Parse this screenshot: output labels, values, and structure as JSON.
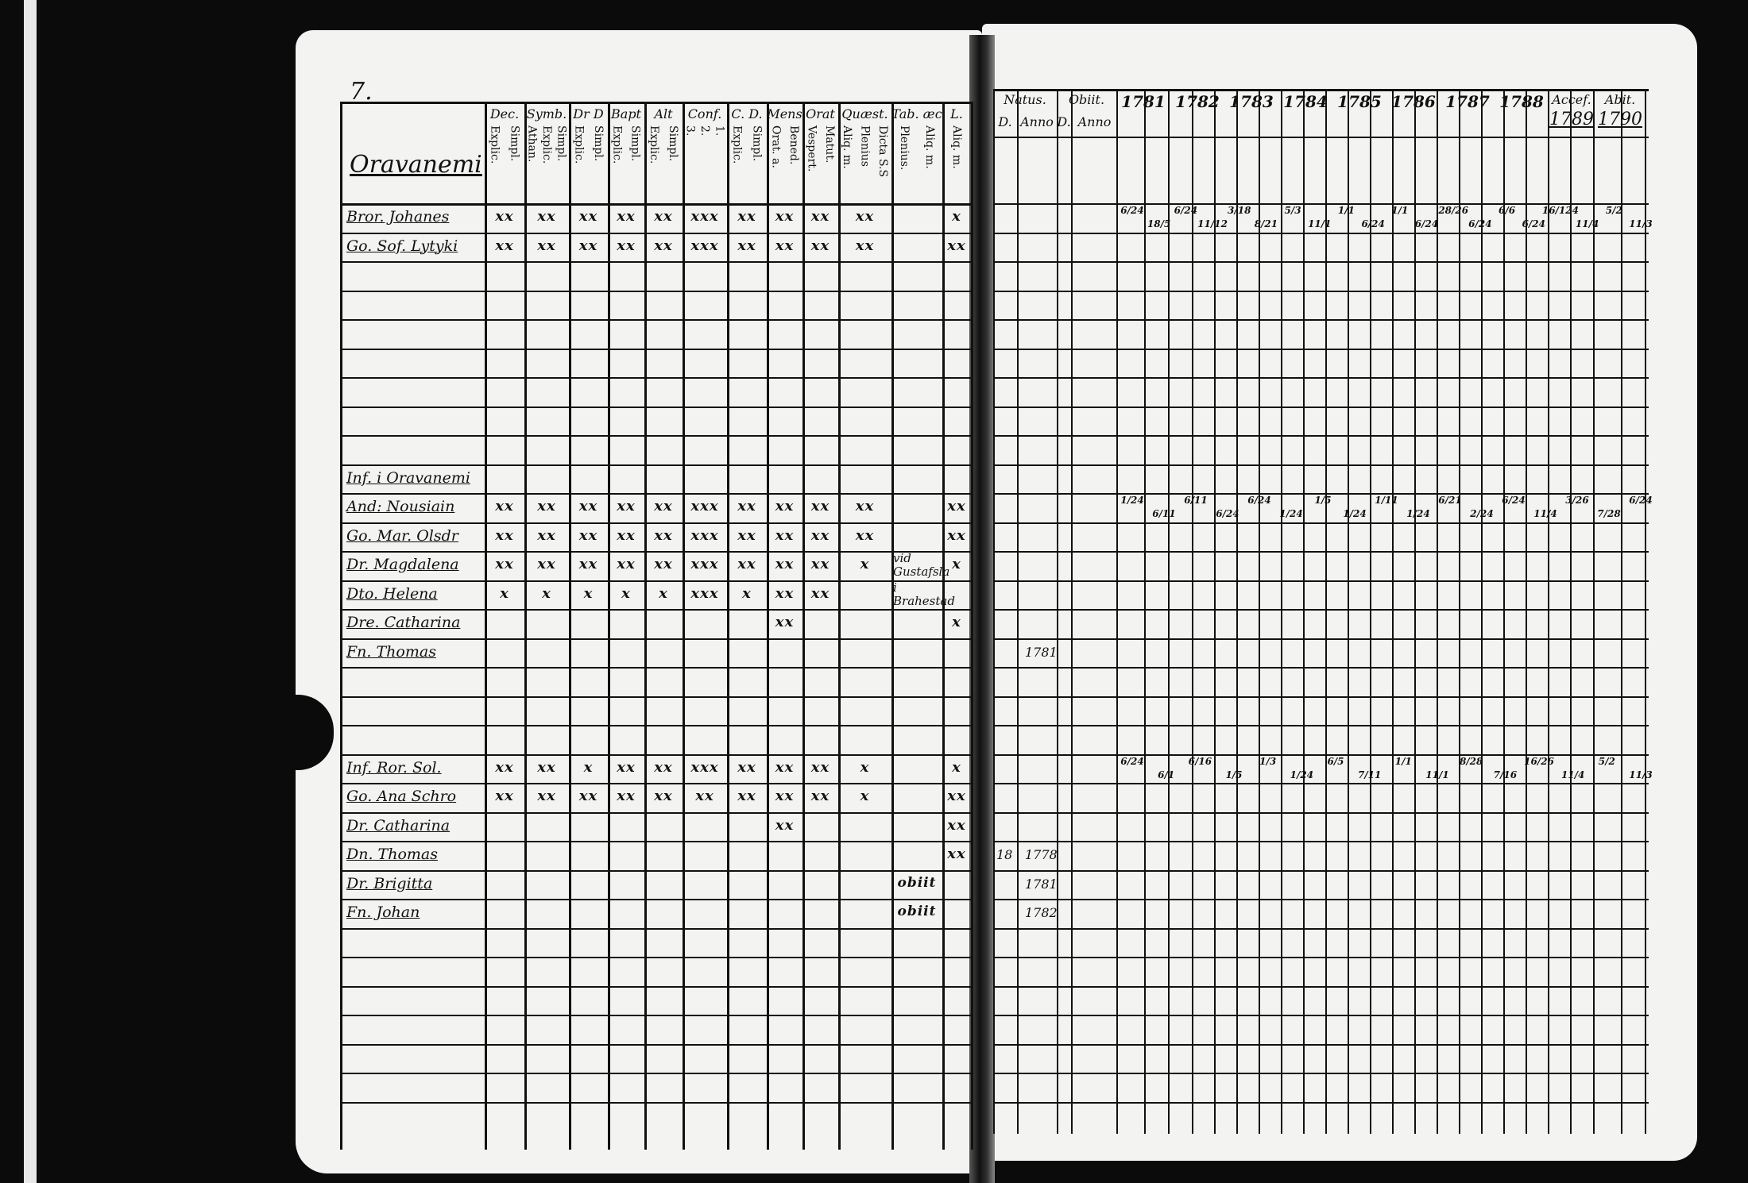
{
  "page_number": "7.",
  "village_title": "Oravanemi",
  "left_headers": [
    {
      "title": "Dec.",
      "sub": [
        "Explic.",
        "Simpl."
      ]
    },
    {
      "title": "Symb.",
      "sub": [
        "Athan.",
        "Explic.",
        "Simpl."
      ]
    },
    {
      "title": "Dr D",
      "sub": [
        "Explic.",
        "Simpl."
      ]
    },
    {
      "title": "Bapt",
      "sub": [
        "Explic.",
        "Simpl."
      ]
    },
    {
      "title": "Alt",
      "sub": [
        "Explic.",
        "Simpl."
      ]
    },
    {
      "title": "Conf.",
      "sub": [
        "3.",
        "2.",
        "1."
      ]
    },
    {
      "title": "C. D.",
      "sub": [
        "Explic.",
        "Simpl."
      ]
    },
    {
      "title": "Mens",
      "sub": [
        "Orat. a.",
        "Bened."
      ]
    },
    {
      "title": "Orat",
      "sub": [
        "Vespert.",
        "Matut."
      ]
    },
    {
      "title": "Quæst.",
      "sub": [
        "Aliq. m.",
        "Plenius",
        "Dicta S.S"
      ]
    },
    {
      "title": "Tab. æc",
      "sub": [
        "Plenius.",
        "Aliq. m."
      ]
    },
    {
      "title": "L.",
      "sub": [
        "Aliq. m."
      ]
    }
  ],
  "right_headers": {
    "natus": "Natus.",
    "obiit": "Obiit.",
    "natus_sub": [
      "D.",
      "Anno"
    ],
    "obiit_sub": [
      "D.",
      "Anno"
    ],
    "years": [
      "1781",
      "1782",
      "1783",
      "1784",
      "1785",
      "1786",
      "1787",
      "1788"
    ],
    "accef": "Accef.",
    "accef_year": "1789",
    "abit": "Abit.",
    "abit_year": "1790"
  },
  "rows": [
    {
      "row": 0,
      "name": "Bror. Johanes",
      "marks": [
        "xx",
        "xx",
        "xx",
        "xx",
        "xx",
        "xxx",
        "xx",
        "xx",
        "xx",
        "xx",
        "",
        "x"
      ],
      "natus_d": "",
      "natus_anno": "",
      "note": "",
      "fractions": [
        "6/24",
        "18/5",
        "6/24",
        "11/12",
        "3/18",
        "8/21",
        "5/3",
        "11/1",
        "1/1",
        "6/24",
        "1/1",
        "6/24",
        "28/26",
        "6/24",
        "6/6",
        "6/24",
        "16/124",
        "11/4",
        "5/2",
        "11/3"
      ]
    },
    {
      "row": 1,
      "name": "Go. Sof. Lytyki",
      "marks": [
        "xx",
        "xx",
        "xx",
        "xx",
        "xx",
        "xxx",
        "xx",
        "xx",
        "xx",
        "xx",
        "",
        "xx"
      ],
      "natus_d": "",
      "natus_anno": "",
      "note": "",
      "fractions": []
    },
    {
      "row": 9,
      "name": "Inf. i Oravanemi",
      "marks": [
        "",
        "",
        "",
        "",
        "",
        "",
        "",
        "",
        "",
        "",
        "",
        ""
      ],
      "natus_d": "",
      "natus_anno": "",
      "note": "",
      "fractions": []
    },
    {
      "row": 10,
      "name": "And: Nousiain",
      "marks": [
        "xx",
        "xx",
        "xx",
        "xx",
        "xx",
        "xxx",
        "xx",
        "xx",
        "xx",
        "xx",
        "",
        "xx"
      ],
      "natus_d": "",
      "natus_anno": "",
      "note": "",
      "fractions": [
        "1/24",
        "6/11",
        "6/11",
        "6/24",
        "6/24",
        "1/24",
        "1/5",
        "1/24",
        "1/11",
        "1/24",
        "6/21",
        "2/24",
        "6/24",
        "11/4",
        "3/26",
        "7/28",
        "6/24"
      ]
    },
    {
      "row": 11,
      "name": "Go. Mar. Olsdr",
      "marks": [
        "xx",
        "xx",
        "xx",
        "xx",
        "xx",
        "xxx",
        "xx",
        "xx",
        "xx",
        "xx",
        "",
        "xx"
      ],
      "natus_d": "",
      "natus_anno": "",
      "note": "",
      "fractions": []
    },
    {
      "row": 12,
      "name": "Dr. Magdalena",
      "marks": [
        "xx",
        "xx",
        "xx",
        "xx",
        "xx",
        "xxx",
        "xx",
        "xx",
        "xx",
        "x",
        "",
        "x"
      ],
      "natus_d": "",
      "natus_anno": "",
      "note": "vid Gustafsla",
      "fractions": []
    },
    {
      "row": 13,
      "name": "Dto. Helena",
      "marks": [
        "x",
        "x",
        "x",
        "x",
        "x",
        "xxx",
        "x",
        "xx",
        "xx",
        "",
        "",
        ""
      ],
      "natus_d": "",
      "natus_anno": "",
      "note": "i Brahestad",
      "fractions": []
    },
    {
      "row": 14,
      "name": "Dre. Catharina",
      "marks": [
        "",
        "",
        "",
        "",
        "",
        "",
        "",
        "xx",
        "",
        "",
        "",
        "x"
      ],
      "natus_d": "",
      "natus_anno": "",
      "note": "",
      "fractions": []
    },
    {
      "row": 15,
      "name": "Fn. Thomas",
      "marks": [
        "",
        "",
        "",
        "",
        "",
        "",
        "",
        "",
        "",
        "",
        "",
        ""
      ],
      "natus_d": "",
      "natus_anno": "1781",
      "note": "",
      "fractions": []
    },
    {
      "row": 19,
      "name": "Inf. Ror. Sol.",
      "marks": [
        "xx",
        "xx",
        "x",
        "xx",
        "xx",
        "xxx",
        "xx",
        "xx",
        "xx",
        "x",
        "",
        "x"
      ],
      "natus_d": "",
      "natus_anno": "",
      "note": "",
      "fractions": [
        "6/24",
        "6/1",
        "6/16",
        "1/5",
        "1/3",
        "1/24",
        "6/5",
        "7/11",
        "1/1",
        "11/1",
        "8/28",
        "7/16",
        "16/26",
        "11/4",
        "5/2",
        "11/3"
      ]
    },
    {
      "row": 20,
      "name": "Go. Ana Schro",
      "marks": [
        "xx",
        "xx",
        "xx",
        "xx",
        "xx",
        "xx",
        "xx",
        "xx",
        "xx",
        "x",
        "",
        "xx"
      ],
      "natus_d": "",
      "natus_anno": "",
      "note": "",
      "fractions": []
    },
    {
      "row": 21,
      "name": "Dr. Catharina",
      "marks": [
        "",
        "",
        "",
        "",
        "",
        "",
        "",
        "xx",
        "",
        "",
        "",
        "xx"
      ],
      "natus_d": "",
      "natus_anno": "",
      "note": "",
      "fractions": []
    },
    {
      "row": 22,
      "name": "Dn. Thomas",
      "marks": [
        "",
        "",
        "",
        "",
        "",
        "",
        "",
        "",
        "",
        "",
        "",
        "xx"
      ],
      "natus_d": "18",
      "natus_anno": "1778",
      "note": "",
      "fractions": []
    },
    {
      "row": 23,
      "name": "Dr. Brigitta",
      "marks": [
        "",
        "",
        "",
        "",
        "",
        "",
        "",
        "",
        "",
        "",
        "obiit",
        ""
      ],
      "natus_d": "",
      "natus_anno": "1781",
      "note": "",
      "fractions": []
    },
    {
      "row": 24,
      "name": "Fn. Johan",
      "marks": [
        "",
        "",
        "",
        "",
        "",
        "",
        "",
        "",
        "",
        "",
        "obiit",
        ""
      ],
      "natus_d": "",
      "natus_anno": "1782",
      "note": "",
      "fractions": []
    }
  ],
  "colors": {
    "paper": "#f3f3f1",
    "ink": "#111111",
    "background": "#0b0b0b"
  }
}
